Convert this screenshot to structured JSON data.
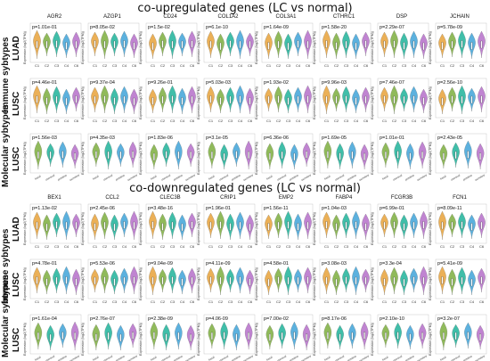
{
  "top_title": "co-upregulated genes (LC vs normal)",
  "bottom_title": "co-downregulated genes (LC vs normal)",
  "group_labels": {
    "immune": "Immune sybtypes",
    "molecular": "Molecular sybtypes"
  },
  "ylabel": "Expression (log2(TPM))",
  "x_immune": [
    "C1",
    "C2",
    "C3",
    "C4",
    "C6"
  ],
  "x_molecular": [
    "basal",
    "classical",
    "primitive",
    "secretory"
  ],
  "colors": [
    "#e8a23a",
    "#7cae3e",
    "#1fb39a",
    "#3fa3d8",
    "#b56fc9",
    "#e46a8e"
  ],
  "chart_data": [
    {
      "type": "violin",
      "section": "co-upregulated",
      "genes": [
        "AGR2",
        "AZGP1",
        "CD24",
        "COL1A2",
        "COL3A1",
        "CTHRC1",
        "DSP",
        "JCHAIN"
      ],
      "rows": [
        {
          "label": "LUAD",
          "subtype": "immune",
          "p": [
            "p=1.01e-01",
            "p=8.05e-02",
            "p=1.5e-02",
            "p=6.1e-10",
            "p=1.64e-09",
            "p=1.58e-20",
            "p=2.29e-07",
            "p=5.78e-09"
          ]
        },
        {
          "label": "LUSC",
          "subtype": "immune",
          "p": [
            "p=4.46e-01",
            "p=9.37e-04",
            "p=9.26e-01",
            "p=5.03e-03",
            "p=1.93e-02",
            "p=9.96e-03",
            "p=7.46e-07",
            "p=2.56e-10"
          ]
        },
        {
          "label": "LUSC",
          "subtype": "molecular",
          "p": [
            "p=1.56e-03",
            "p=4.35e-03",
            "p=1.83e-06",
            "p=3.1e-05",
            "p=6.36e-06",
            "p=1.69e-05",
            "p=1.01e-01",
            "p=2.43e-05"
          ]
        }
      ]
    },
    {
      "type": "violin",
      "section": "co-downregulated",
      "genes": [
        "BEX1",
        "CCL2",
        "CLEC3B",
        "CRIP1",
        "EMP2",
        "FABP4",
        "FCGR3B",
        "FCN1"
      ],
      "rows": [
        {
          "label": "LUAD",
          "subtype": "immune",
          "p": [
            "p=1.13e-02",
            "p=2.45e-06",
            "p=3.48e-16",
            "p=1.96e-01",
            "p=1.56e-11",
            "p=1.04e-03",
            "p=6.99e-01",
            "p=8.09e-11"
          ]
        },
        {
          "label": "LUSC",
          "subtype": "immune",
          "p": [
            "p=4.78e-01",
            "p=5.53e-06",
            "p=9.04e-09",
            "p=4.11e-09",
            "p=4.58e-01",
            "p=3.08e-03",
            "p=3.3e-04",
            "p=5.41e-09"
          ]
        },
        {
          "label": "LUSC",
          "subtype": "molecular",
          "p": [
            "p=1.61e-04",
            "p=2.76e-07",
            "p=2.38e-09",
            "p=4.06-09",
            "p=7.00e-02",
            "p=8.17e-06",
            "p=2.10e-10",
            "p=3.2e-07"
          ]
        }
      ]
    }
  ]
}
